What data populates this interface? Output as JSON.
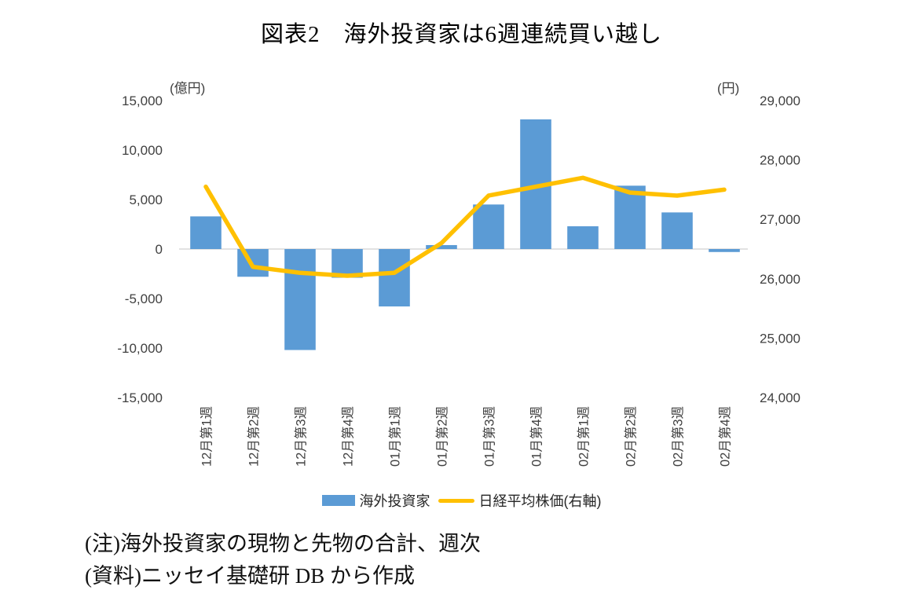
{
  "title": "図表2　海外投資家は6週連続買い越し",
  "notes": [
    "(注)海外投資家の現物と先物の合計、週次",
    "(資料)ニッセイ基礎研 DB から作成"
  ],
  "chart_data": {
    "type": "combo",
    "title": "図表2　海外投資家は6週連続買い越し",
    "categories": [
      "12月第1週",
      "12月第2週",
      "12月第3週",
      "12月第4週",
      "01月第1週",
      "01月第2週",
      "01月第3週",
      "01月第4週",
      "02月第1週",
      "02月第2週",
      "02月第3週",
      "02月第4週"
    ],
    "series": [
      {
        "name": "海外投資家",
        "type": "bar",
        "axis": "left",
        "values": [
          3300,
          -2800,
          -10200,
          -2900,
          -5800,
          400,
          4500,
          13100,
          2300,
          6400,
          3700,
          -300
        ]
      },
      {
        "name": "日経平均株価(右軸)",
        "type": "line",
        "axis": "right",
        "values": [
          27550,
          26200,
          26100,
          26050,
          26100,
          26600,
          27400,
          27550,
          27700,
          27450,
          27400,
          27500
        ]
      }
    ],
    "left_axis": {
      "label": "(億円)",
      "min": -15000,
      "max": 15000,
      "step": 5000,
      "ticks": [
        15000,
        10000,
        5000,
        0,
        -5000,
        -10000,
        -15000
      ]
    },
    "right_axis": {
      "label": "(円)",
      "min": 24000,
      "max": 29000,
      "step": 1000,
      "ticks": [
        29000,
        28000,
        27000,
        26000,
        25000,
        24000
      ]
    },
    "colors": {
      "bar": "#5B9BD5",
      "line": "#FFC000",
      "axis_line": "#D9D9D9",
      "tick_text": "#404040"
    },
    "grid": "off",
    "legend_position": "bottom"
  }
}
